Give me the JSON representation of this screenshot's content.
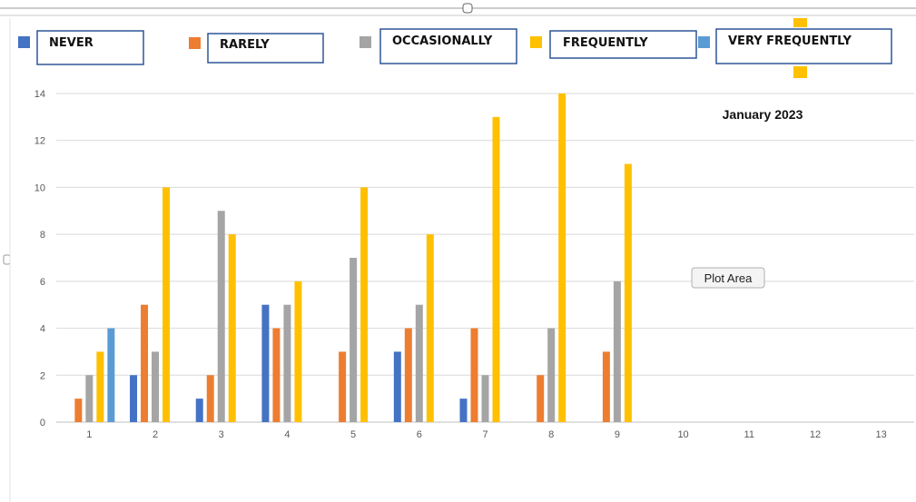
{
  "colors": {
    "never": "#4472C4",
    "rarely": "#ED7D31",
    "occasionally": "#A5A5A5",
    "frequently": "#FFC000",
    "very_frequently": "#5B9BD5",
    "grid": "#D9D9D9",
    "legend_box_border": "#2F5597"
  },
  "chart_data": {
    "type": "bar",
    "categories": [
      "1",
      "2",
      "3",
      "4",
      "5",
      "6",
      "7",
      "8",
      "9",
      "10",
      "11",
      "12",
      "13"
    ],
    "series": [
      {
        "name": "NEVER",
        "values": [
          0,
          2,
          1,
          5,
          0,
          3,
          1,
          0,
          0,
          0,
          0,
          0,
          0
        ]
      },
      {
        "name": "RARELY",
        "values": [
          1,
          5,
          2,
          4,
          3,
          4,
          4,
          2,
          3,
          0,
          0,
          0,
          0
        ]
      },
      {
        "name": "OCCASIONALLY",
        "values": [
          2,
          3,
          9,
          5,
          7,
          5,
          2,
          4,
          6,
          0,
          0,
          0,
          0
        ]
      },
      {
        "name": "FREQUENTLY",
        "values": [
          3,
          10,
          8,
          6,
          10,
          8,
          13,
          14,
          11,
          0,
          0,
          0,
          0
        ]
      },
      {
        "name": "VERY FREQUENTLY",
        "values": [
          4,
          0,
          0,
          0,
          0,
          0,
          0,
          0,
          0,
          0,
          0,
          0,
          0
        ]
      }
    ],
    "yticks": [
      0,
      2,
      4,
      6,
      8,
      10,
      12,
      14
    ],
    "ylim": [
      0,
      14
    ],
    "grid": true,
    "legend_position": "top",
    "annotation": "January 2023",
    "tooltip": "Plot Area"
  }
}
